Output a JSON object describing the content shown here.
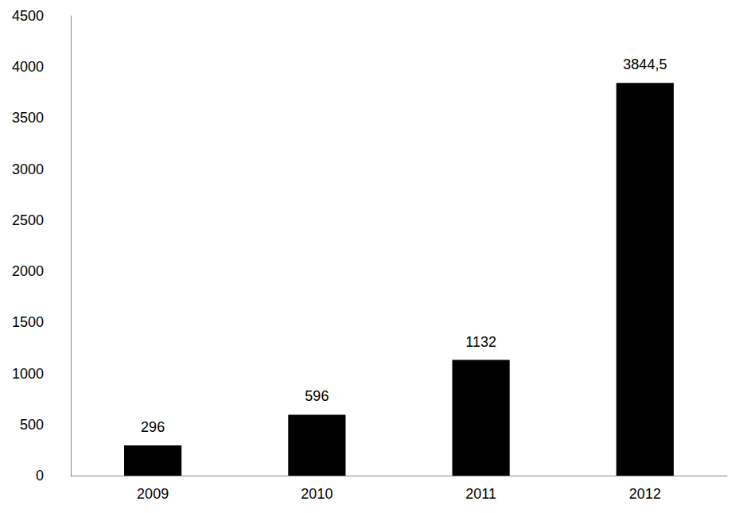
{
  "chart_data": {
    "type": "bar",
    "categories": [
      "2009",
      "2010",
      "2011",
      "2012"
    ],
    "values": [
      296,
      596,
      1132,
      3844.5
    ],
    "value_labels": [
      "296",
      "596",
      "1132",
      "3844,5"
    ],
    "color": "#000000",
    "ylim": [
      0,
      4500
    ],
    "yticks": [
      0,
      500,
      1000,
      1500,
      2000,
      2500,
      3000,
      3500,
      4000,
      4500
    ],
    "grid": false,
    "data_labels": true
  }
}
